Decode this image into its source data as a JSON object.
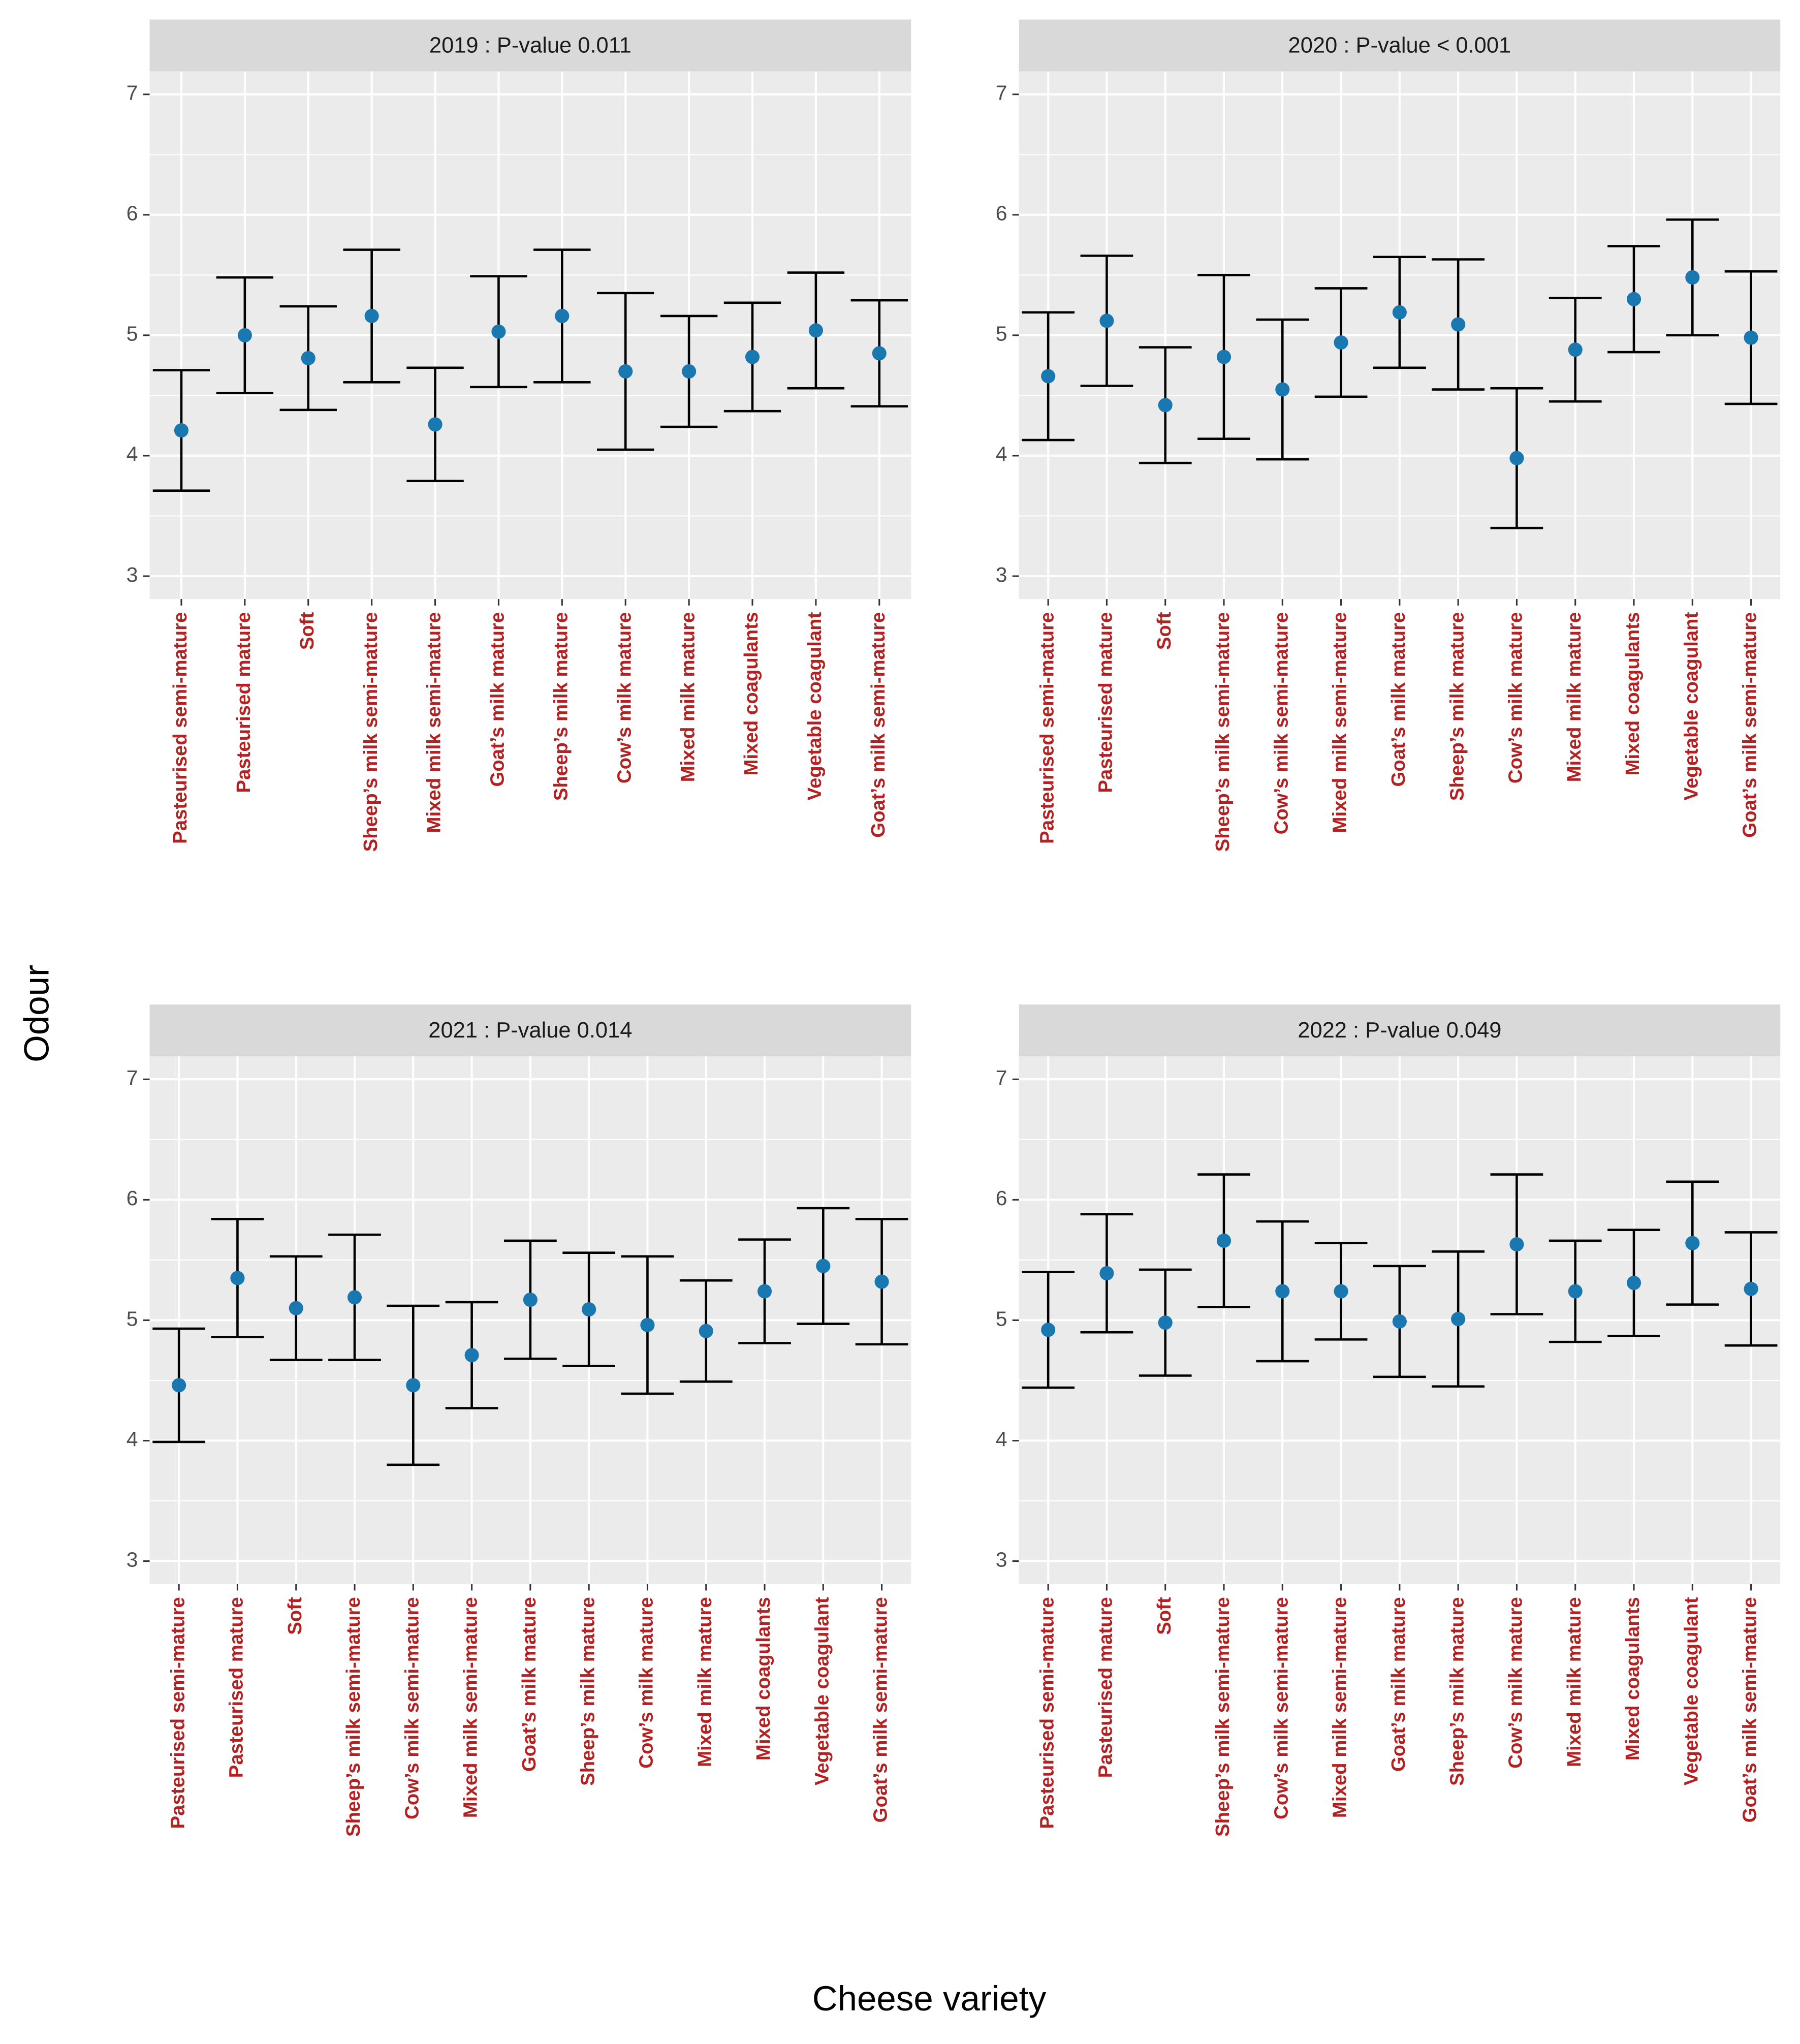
{
  "axis_labels": {
    "y": "Odour",
    "x": "Cheese variety"
  },
  "chart_data": [
    {
      "type": "errorbar",
      "title": "2019 : P-value  0.011",
      "categories": [
        "Pasteurised semi-mature",
        "Pasteurised mature",
        "Soft",
        "Sheep’s milk semi-mature",
        "Mixed milk semi-mature",
        "Goat’s milk mature",
        "Sheep’s milk mature",
        "Cow’s milk mature",
        "Mixed milk mature",
        "Mixed coagulants",
        "Vegetable coagulant",
        "Goat’s milk semi-mature"
      ],
      "values": [
        4.21,
        5.0,
        4.81,
        5.16,
        4.26,
        5.03,
        5.16,
        4.7,
        4.7,
        4.82,
        5.04,
        4.85
      ],
      "errors": [
        0.5,
        0.48,
        0.43,
        0.55,
        0.47,
        0.46,
        0.55,
        0.65,
        0.46,
        0.45,
        0.48,
        0.44
      ],
      "color": "#1a78b0",
      "error_color": "#000000",
      "category_label_color": "#b22222",
      "ylim": [
        2.81,
        7.19
      ],
      "yticks": [
        3,
        4,
        5,
        6,
        7
      ],
      "grid": true
    },
    {
      "type": "errorbar",
      "title": "2020 : P-value  < 0.001",
      "categories": [
        "Pasteurised semi-mature",
        "Pasteurised mature",
        "Soft",
        "Sheep’s milk semi-mature",
        "Cow’s milk semi-mature",
        "Mixed milk semi-mature",
        "Goat’s milk mature",
        "Sheep’s milk mature",
        "Cow’s milk mature",
        "Mixed milk mature",
        "Mixed coagulants",
        "Vegetable coagulant",
        "Goat’s milk semi-mature"
      ],
      "values": [
        4.66,
        5.12,
        4.42,
        4.82,
        4.55,
        4.94,
        5.19,
        5.09,
        3.98,
        4.88,
        5.3,
        5.48,
        4.98
      ],
      "errors": [
        0.53,
        0.54,
        0.48,
        0.68,
        0.58,
        0.45,
        0.46,
        0.54,
        0.58,
        0.43,
        0.44,
        0.48,
        0.55
      ],
      "color": "#1a78b0",
      "error_color": "#000000",
      "category_label_color": "#b22222",
      "ylim": [
        2.81,
        7.19
      ],
      "yticks": [
        3,
        4,
        5,
        6,
        7
      ],
      "grid": true
    },
    {
      "type": "errorbar",
      "title": "2021 : P-value  0.014",
      "categories": [
        "Pasteurised semi-mature",
        "Pasteurised mature",
        "Soft",
        "Sheep’s milk semi-mature",
        "Cow’s milk semi-mature",
        "Mixed milk semi-mature",
        "Goat’s milk mature",
        "Sheep’s milk mature",
        "Cow’s milk mature",
        "Mixed milk mature",
        "Mixed coagulants",
        "Vegetable coagulant",
        "Goat’s milk semi-mature"
      ],
      "values": [
        4.46,
        5.35,
        5.1,
        5.19,
        4.46,
        4.71,
        5.17,
        5.09,
        4.96,
        4.91,
        5.24,
        5.45,
        5.32
      ],
      "errors": [
        0.47,
        0.49,
        0.43,
        0.52,
        0.66,
        0.44,
        0.49,
        0.47,
        0.57,
        0.42,
        0.43,
        0.48,
        0.52
      ],
      "color": "#1a78b0",
      "error_color": "#000000",
      "category_label_color": "#b22222",
      "ylim": [
        2.81,
        7.19
      ],
      "yticks": [
        3,
        4,
        5,
        6,
        7
      ],
      "grid": true
    },
    {
      "type": "errorbar",
      "title": "2022 : P-value  0.049",
      "categories": [
        "Pasteurised semi-mature",
        "Pasteurised mature",
        "Soft",
        "Sheep’s milk semi-mature",
        "Cow’s milk semi-mature",
        "Mixed milk semi-mature",
        "Goat’s milk mature",
        "Sheep’s milk mature",
        "Cow’s milk mature",
        "Mixed milk mature",
        "Mixed coagulants",
        "Vegetable coagulant",
        "Goat’s milk semi-mature"
      ],
      "values": [
        4.92,
        5.39,
        4.98,
        5.66,
        5.24,
        5.24,
        4.99,
        5.01,
        5.63,
        5.24,
        5.31,
        5.64,
        5.26
      ],
      "errors": [
        0.48,
        0.49,
        0.44,
        0.55,
        0.58,
        0.4,
        0.46,
        0.56,
        0.58,
        0.42,
        0.44,
        0.51,
        0.47
      ],
      "color": "#1a78b0",
      "error_color": "#000000",
      "category_label_color": "#b22222",
      "ylim": [
        2.81,
        7.19
      ],
      "yticks": [
        3,
        4,
        5,
        6,
        7
      ],
      "grid": true
    }
  ]
}
